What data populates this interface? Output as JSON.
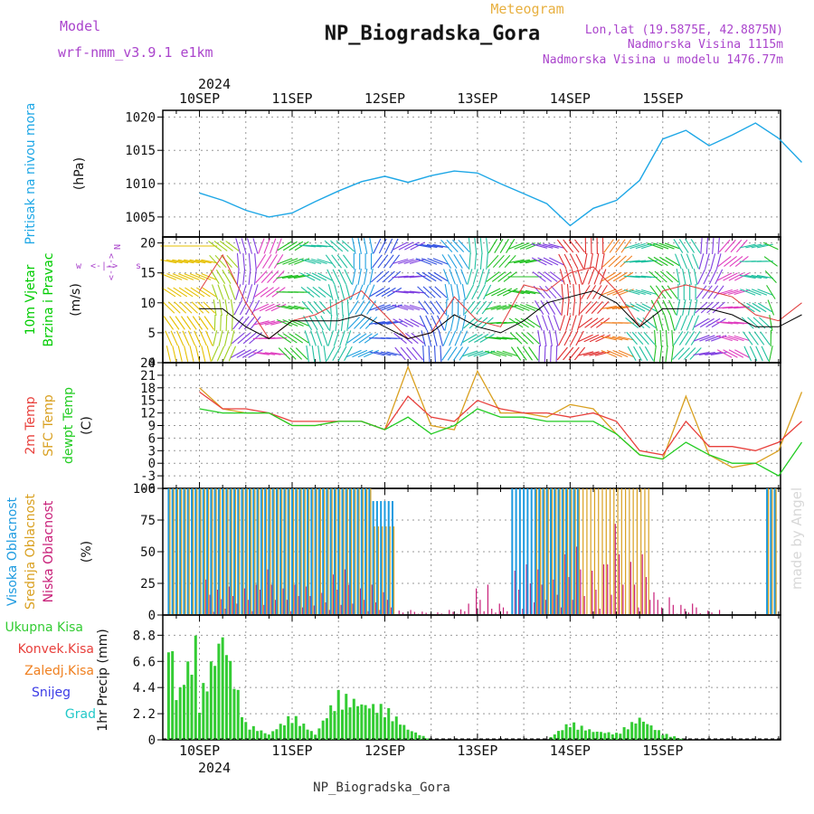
{
  "header": {
    "model_label": "Model",
    "model_name": "wrf-nmm_v3.9.1 e1km",
    "product": "Meteogram",
    "station": "NP_Biogradska_Gora",
    "coords": "Lon,lat (19.5875E, 42.8875N)",
    "elevation": "Nadmorska Visina 1115m",
    "model_elevation": "Nadmorska Visina u modelu 1476.77m",
    "year_top": "2024",
    "year_bottom": "2024",
    "credit": "made by Angel",
    "footer_station": "NP_Biogradska_Gora"
  },
  "colors": {
    "pressure": "#1ea7e6",
    "wind_label": "#00cc00",
    "wind_speed": "#000000",
    "wind_gust": "#e03c3c",
    "temp_2m": "#e8403c",
    "temp_sfc": "#d9a020",
    "temp_dew": "#22cc22",
    "cloud_high": "#1e9be0",
    "cloud_mid": "#d9a020",
    "cloud_low": "#c81e78",
    "precip_total": "#33cc33",
    "precip_conv": "#e8403c",
    "precip_frozen": "#f08020",
    "precip_snow": "#3c3ce6",
    "precip_hail": "#22c8c8",
    "model_text": "#aa44cc",
    "product_text": "#e8b040"
  },
  "chart_data": [
    {
      "type": "line",
      "panel": "pressure",
      "ylabel_lines": [
        "Pritisak na nivou mora",
        "(hPa)"
      ],
      "ylim": [
        1002,
        1021
      ],
      "yticks": [
        "1005",
        "1010",
        "1015",
        "1020"
      ],
      "x_tick_labels": [
        "10SEP",
        "11SEP",
        "12SEP",
        "13SEP",
        "14SEP",
        "15SEP"
      ],
      "grid": true,
      "x_hours": [
        0,
        6,
        12,
        18,
        24,
        30,
        36,
        42,
        48,
        54,
        60,
        66,
        72,
        78,
        84,
        90,
        96,
        102,
        108,
        114,
        120,
        126,
        132,
        138,
        144,
        150,
        156
      ],
      "series": [
        {
          "values": [
            1008.6,
            1007.5,
            1006.0,
            1005.0,
            1005.6,
            1007.3,
            1008.9,
            1010.3,
            1011.1,
            1010.2,
            1011.2,
            1011.9,
            1011.6,
            1010.0,
            1008.5,
            1007.0,
            1003.7,
            1006.3,
            1007.5,
            1010.5,
            1016.7,
            1018.0,
            1015.7,
            1017.3,
            1019.1,
            1016.8,
            1013.2
          ]
        }
      ]
    },
    {
      "type": "line",
      "panel": "wind",
      "ylabel_lines": [
        "10m Vjetar",
        "Brzina i Pravac",
        "(m/s)"
      ],
      "ylim": [
        0,
        21
      ],
      "yticks": [
        "0",
        "5",
        "10",
        "15",
        "20"
      ],
      "grid": true,
      "x_hours": [
        0,
        6,
        12,
        18,
        24,
        30,
        36,
        42,
        48,
        54,
        60,
        66,
        72,
        78,
        84,
        90,
        96,
        102,
        108,
        114,
        120,
        126,
        132,
        138,
        144,
        150,
        156
      ],
      "series": [
        {
          "values": [
            9,
            9,
            6,
            4,
            7,
            7,
            7,
            8,
            6,
            4,
            5,
            8,
            6,
            5,
            7,
            10,
            11,
            12,
            10,
            6,
            9,
            9,
            9,
            8,
            6,
            6,
            8
          ]
        },
        {
          "values": [
            12,
            18,
            10,
            4,
            7,
            8,
            10,
            12,
            8,
            4,
            5,
            11,
            7,
            6,
            13,
            12,
            15,
            16,
            12,
            6,
            12,
            13,
            12,
            11,
            8,
            7,
            10
          ]
        }
      ]
    },
    {
      "type": "line",
      "panel": "temperature",
      "ylabel_lines": [
        "2m Temp",
        "SFC Temp",
        "dewpt Temp",
        "(C)"
      ],
      "ylim": [
        -6,
        24
      ],
      "yticks": [
        "-6",
        "-3",
        "0",
        "3",
        "6",
        "9",
        "12",
        "15",
        "18",
        "21",
        "24"
      ],
      "grid": true,
      "x_hours": [
        0,
        6,
        12,
        18,
        24,
        30,
        36,
        42,
        48,
        54,
        60,
        66,
        72,
        78,
        84,
        90,
        96,
        102,
        108,
        114,
        120,
        126,
        132,
        138,
        144,
        150,
        156
      ],
      "series": [
        {
          "name": "2m Temp",
          "values": [
            17,
            13,
            13,
            12,
            10,
            10,
            10,
            10,
            8,
            16,
            11,
            10,
            15,
            13,
            12,
            12,
            11,
            12,
            10,
            3,
            2,
            10,
            4,
            4,
            3,
            5,
            10
          ]
        },
        {
          "name": "SFC Temp",
          "values": [
            18,
            13,
            12,
            12,
            9,
            9,
            10,
            10,
            8,
            23,
            9,
            8,
            22,
            12,
            12,
            11,
            14,
            13,
            7,
            2,
            1,
            16,
            2,
            -1,
            0,
            3,
            17
          ]
        },
        {
          "name": "dewpt Temp",
          "values": [
            13,
            12,
            12,
            12,
            9,
            9,
            10,
            10,
            8,
            11,
            7,
            9,
            13,
            11,
            11,
            10,
            10,
            10,
            7,
            2,
            1,
            5,
            2,
            0,
            0,
            -3,
            5
          ]
        }
      ]
    },
    {
      "type": "bar",
      "panel": "cloud",
      "ylabel_lines": [
        "Visoka Oblacnost",
        "Srednja Oblacnost",
        "Niska Oblacnost",
        "(%)"
      ],
      "ylim": [
        0,
        100
      ],
      "yticks": [
        "0",
        "25",
        "50",
        "75",
        "100"
      ],
      "grid": true,
      "x_hours": [
        0,
        6,
        12,
        18,
        24,
        30,
        36,
        42,
        48,
        54,
        60,
        66,
        72,
        78,
        84,
        90,
        96,
        102,
        108,
        114,
        120,
        126,
        132,
        138,
        144,
        150,
        156
      ],
      "series": [
        {
          "name": "Visoka Oblacnost",
          "values": [
            100,
            100,
            100,
            100,
            100,
            100,
            100,
            100,
            90,
            0,
            0,
            0,
            0,
            0,
            100,
            100,
            100,
            0,
            0,
            0,
            0,
            0,
            0,
            0,
            0,
            100,
            0
          ]
        },
        {
          "name": "Srednja Oblacnost",
          "values": [
            100,
            100,
            100,
            100,
            100,
            100,
            100,
            100,
            70,
            0,
            0,
            0,
            0,
            0,
            0,
            100,
            100,
            100,
            100,
            100,
            0,
            0,
            0,
            0,
            0,
            100,
            0
          ]
        },
        {
          "name": "Niska Oblacnost",
          "values": [
            40,
            25,
            30,
            40,
            30,
            25,
            40,
            30,
            20,
            5,
            3,
            5,
            30,
            10,
            50,
            40,
            60,
            50,
            80,
            60,
            20,
            10,
            5,
            0,
            0,
            0,
            0
          ]
        }
      ]
    },
    {
      "type": "bar",
      "panel": "precip",
      "ylabel_lines": [
        "1hr Precip (mm)"
      ],
      "ylim": [
        0,
        10.5
      ],
      "yticks": [
        "0",
        "2.2",
        "4.4",
        "6.6",
        "8.8"
      ],
      "x_tick_labels": [
        "10SEP",
        "11SEP",
        "12SEP",
        "13SEP",
        "14SEP",
        "15SEP"
      ],
      "grid": true,
      "legend": [
        "Ukupna Kisa",
        "Konvek.Kisa",
        "Zaledj.Kisa",
        "Snijeg",
        "Grad"
      ],
      "x_hours": [
        0,
        6,
        12,
        18,
        24,
        30,
        36,
        42,
        48,
        54,
        60,
        66,
        72,
        78,
        84,
        90,
        96,
        102,
        108,
        114,
        120,
        126,
        132,
        138,
        144,
        150,
        156
      ],
      "series": [
        {
          "name": "Ukupna Kisa",
          "values": [
            3.8,
            9.8,
            1.5,
            0.5,
            2.3,
            0.5,
            4.2,
            3.3,
            3.0,
            1.0,
            0,
            0,
            0,
            0,
            0,
            0,
            1.6,
            0.8,
            0.6,
            2.0,
            0.6,
            0,
            0,
            0,
            0,
            0,
            0
          ]
        }
      ]
    }
  ]
}
